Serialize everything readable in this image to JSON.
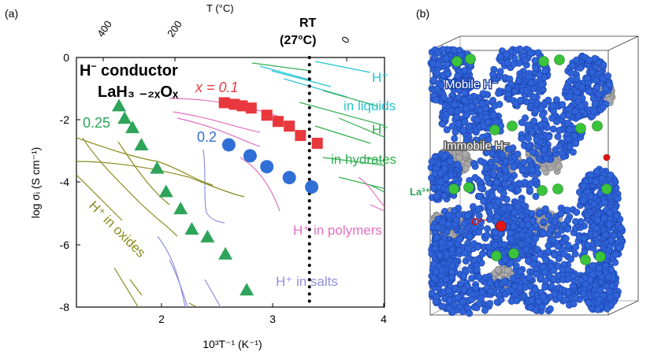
{
  "panel_a": {
    "label": "(a)",
    "top_axis_label": "T (°C)",
    "top_ticks": [
      "400",
      "200",
      "0"
    ],
    "rt_label_1": "RT",
    "rt_label_2": "(27°C)",
    "title_1": "H",
    "title_1_sup": "−",
    "title_1_rest": " conductor",
    "formula": "LaH₃ ₋₂ₓOₓ",
    "ylabel": "log σᵢ (S cm⁻¹)",
    "xlabel": "10³T⁻¹ (K⁻¹)",
    "y_ticks": [
      "0",
      "-2",
      "-4",
      "-6",
      "-8"
    ],
    "x_ticks": [
      "2",
      "3",
      "4"
    ],
    "series_labels": {
      "x01": "x = 0.1",
      "x02": "0.2",
      "x025": "0.25"
    },
    "region_labels": {
      "liquids": [
        "H⁺",
        "in liquids"
      ],
      "hydrates": [
        "H⁺",
        "in hydrates"
      ],
      "polymers": "H⁺ in polymers",
      "salts": "H⁺ in salts",
      "oxides": "H⁺ in oxides"
    }
  },
  "panel_b": {
    "label": "(b)",
    "mobile": "Mobile H⁻",
    "immobile": "Immobile H⁻",
    "la": "La³⁺",
    "o": "O²⁻"
  },
  "colors": {
    "x01": "#e8383d",
    "x02": "#2f6fd6",
    "x025": "#2ea45a",
    "liquids": "#22c4d0",
    "hydrates": "#2fae4f",
    "polymers": "#e070c0",
    "salts": "#8f8fe0",
    "oxides": "#8a8a1e",
    "rt_line": "#000000"
  },
  "chart_data": {
    "type": "scatter",
    "xlabel": "10³T⁻¹ (K⁻¹)",
    "ylabel": "log σᵢ (S cm⁻¹)",
    "xlim": [
      1.25,
      4.0
    ],
    "ylim": [
      -8,
      0
    ],
    "rt_x": 3.33,
    "series": [
      {
        "name": "x = 0.1",
        "marker": "square",
        "x": [
          2.57,
          2.66,
          2.73,
          2.81,
          2.95,
          3.05,
          3.15,
          3.25,
          3.4
        ],
        "y": [
          -1.45,
          -1.5,
          -1.55,
          -1.62,
          -1.85,
          -2.05,
          -2.2,
          -2.5,
          -2.75
        ]
      },
      {
        "name": "0.2",
        "marker": "circle",
        "x": [
          2.61,
          2.8,
          2.95,
          3.15,
          3.35
        ],
        "y": [
          -2.8,
          -3.15,
          -3.5,
          -3.85,
          -4.15
        ]
      },
      {
        "name": "0.25",
        "marker": "triangle",
        "x": [
          1.63,
          1.68,
          1.75,
          1.83,
          1.97,
          2.05,
          2.18,
          2.28,
          2.42,
          2.58,
          2.77
        ],
        "y": [
          -1.55,
          -1.95,
          -2.25,
          -2.8,
          -3.55,
          -4.3,
          -4.85,
          -5.5,
          -5.75,
          -6.3,
          -7.45
        ]
      }
    ]
  }
}
